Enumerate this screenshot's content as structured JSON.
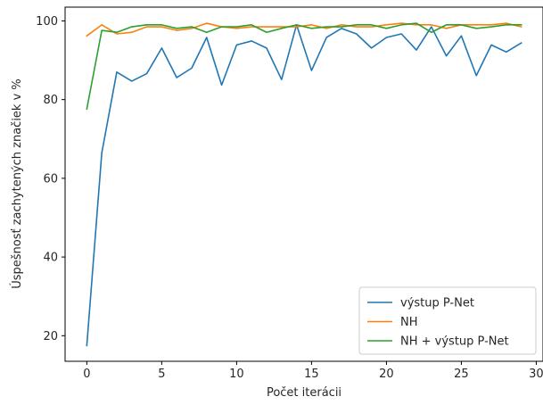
{
  "chart_data": {
    "type": "line",
    "title": "",
    "xlabel": "Počet iterácii",
    "ylabel": "Úspešnosť zachytených značiek v %",
    "xlim": [
      -1.45,
      30.45
    ],
    "ylim": [
      13.5,
      103.5
    ],
    "xticks": [
      0,
      5,
      10,
      15,
      20,
      25,
      30
    ],
    "yticks": [
      20,
      40,
      60,
      80,
      100
    ],
    "grid": false,
    "legend_position": "lower right",
    "x": [
      0,
      1,
      2,
      3,
      4,
      5,
      6,
      7,
      8,
      9,
      10,
      11,
      12,
      13,
      14,
      15,
      16,
      17,
      18,
      19,
      20,
      21,
      22,
      23,
      24,
      25,
      26,
      27,
      28,
      29
    ],
    "series": [
      {
        "name": "výstup P-Net",
        "color": "#1f77b4",
        "values": [
          17.5,
          66.5,
          87.0,
          84.7,
          86.6,
          93.1,
          85.6,
          88.0,
          95.8,
          83.7,
          93.9,
          94.9,
          93.1,
          85.1,
          99.0,
          87.4,
          95.8,
          98.1,
          96.7,
          93.1,
          95.8,
          96.7,
          92.6,
          98.5,
          91.1,
          96.2,
          86.1,
          93.9,
          92.1,
          94.4
        ]
      },
      {
        "name": "NH",
        "color": "#ff7f0e",
        "values": [
          96.2,
          99.0,
          96.7,
          97.1,
          98.5,
          98.5,
          97.6,
          98.1,
          99.4,
          98.5,
          98.1,
          98.5,
          98.5,
          98.5,
          98.5,
          99.0,
          98.1,
          99.0,
          98.5,
          98.5,
          99.0,
          99.4,
          99.0,
          99.0,
          98.1,
          99.0,
          99.0,
          99.0,
          99.4,
          98.5
        ]
      },
      {
        "name": "NH + výstup P-Net",
        "color": "#2ca02c",
        "values": [
          77.6,
          97.6,
          97.1,
          98.5,
          99.0,
          99.0,
          98.1,
          98.5,
          97.1,
          98.5,
          98.5,
          99.0,
          97.1,
          98.1,
          99.0,
          98.1,
          98.5,
          98.5,
          99.0,
          99.0,
          98.1,
          99.0,
          99.4,
          97.1,
          99.0,
          99.0,
          98.1,
          98.5,
          99.0,
          99.0
        ]
      }
    ]
  }
}
